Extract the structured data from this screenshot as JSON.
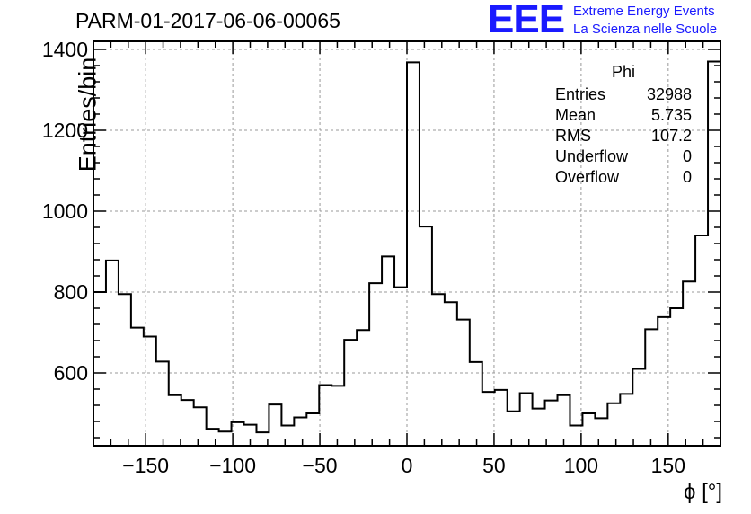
{
  "title": "PARM-01-2017-06-06-00065",
  "logo": {
    "mark": "EEE",
    "line1": "Extreme Energy Events",
    "line2": "La Scienza nelle Scuole",
    "color": "#1a1aff"
  },
  "stats_box": {
    "title": "Phi",
    "rows": [
      {
        "label": "Entries",
        "value": "32988"
      },
      {
        "label": "Mean",
        "value": "5.735"
      },
      {
        "label": "RMS",
        "value": "107.2"
      },
      {
        "label": "Underflow",
        "value": "0"
      },
      {
        "label": "Overflow",
        "value": "0"
      }
    ]
  },
  "chart_data": {
    "type": "bar",
    "histogram": true,
    "xlabel": "ϕ [°]",
    "ylabel": "Entries/bin",
    "xlim": [
      -180,
      180
    ],
    "ylim": [
      420,
      1420
    ],
    "xticks": [
      -150,
      -100,
      -50,
      0,
      50,
      100,
      150
    ],
    "yticks": [
      600,
      800,
      1000,
      1200,
      1400
    ],
    "grid": true,
    "bin_width": 7.2,
    "values": [
      800,
      878,
      795,
      712,
      690,
      628,
      545,
      533,
      515,
      462,
      455,
      478,
      472,
      453,
      522,
      470,
      490,
      500,
      570,
      568,
      682,
      706,
      822,
      888,
      812,
      1368,
      962,
      795,
      775,
      732,
      627,
      553,
      558,
      505,
      550,
      512,
      532,
      545,
      470,
      500,
      488,
      525,
      548,
      610,
      708,
      738,
      760,
      826,
      940,
      1370
    ]
  }
}
